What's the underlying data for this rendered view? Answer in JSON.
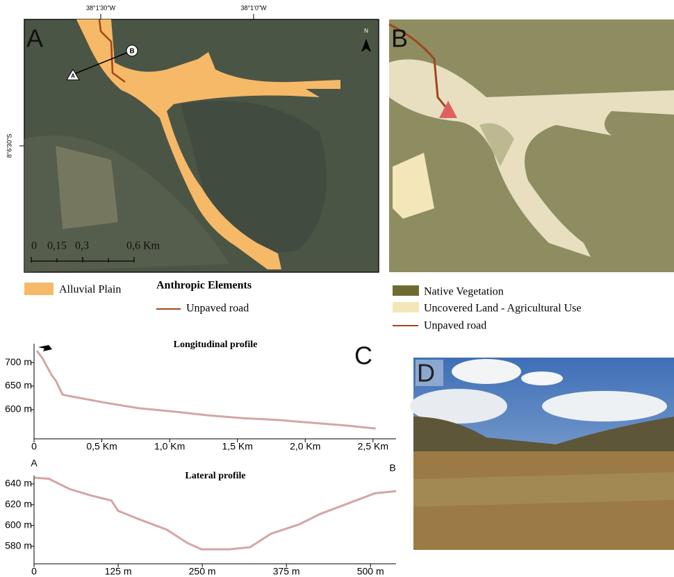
{
  "map_a": {
    "letter": "A",
    "lon_labels": [
      "38°1'30\"W",
      "38°1'0\"W"
    ],
    "lat_label": "8°6'30\"S",
    "markers": [
      "B",
      "A"
    ],
    "north": "N",
    "scale_labels": [
      "0",
      "0,15",
      "0,3",
      "0,6 Km"
    ]
  },
  "legend_a": {
    "items": [
      {
        "label": "Alluvial Plain",
        "color": "#f6b968"
      }
    ],
    "heading": "Anthropic Elements",
    "road": {
      "label": "Unpaved road",
      "color": "#a0461c"
    }
  },
  "map_b": {
    "letter": "B"
  },
  "legend_b": {
    "items": [
      {
        "label": "Native Vegetation",
        "color": "#6f6c33"
      },
      {
        "label": "Uncovered Land - Agricultural Use",
        "color": "#f3e6b8"
      }
    ],
    "road": {
      "label": "Unpaved road",
      "color": "#a0461c"
    }
  },
  "panel_c": {
    "letter": "C"
  },
  "photo_d": {
    "letter": "D"
  },
  "chart_data": [
    {
      "type": "line",
      "title": "Longitudinal profile",
      "color": "#d4a5a5",
      "x": [
        0.02,
        0.06,
        0.13,
        0.16,
        0.21,
        0.24,
        0.52,
        0.77,
        1.03,
        1.28,
        1.54,
        1.8,
        2.05,
        2.31,
        2.52
      ],
      "values": [
        725,
        710,
        673,
        662,
        632,
        630,
        615,
        603,
        596,
        588,
        582,
        578,
        572,
        566,
        560
      ],
      "xlim": [
        0,
        2.67
      ],
      "ylim": [
        538,
        740
      ],
      "xticks": [
        0,
        {
          "value": 0.5,
          "label": "0,5 Km"
        },
        {
          "value": 1.0,
          "label": "1,0 Km"
        },
        {
          "value": 1.5,
          "label": "1,5 Km"
        },
        {
          "value": 2.0,
          "label": "2,0 Km"
        },
        {
          "value": 2.5,
          "label": "2,5 Km"
        }
      ],
      "yticks": [
        {
          "value": 600,
          "label": "600 m"
        },
        {
          "value": 650,
          "label": "650 m"
        },
        {
          "value": 700,
          "label": "700 m"
        }
      ]
    },
    {
      "type": "line",
      "title": "Lateral profile",
      "color": "#d4a5a5",
      "annotations": [
        "A",
        "B"
      ],
      "x": [
        1,
        22,
        53,
        84,
        115,
        125,
        156,
        197,
        228,
        249,
        290,
        321,
        352,
        394,
        425,
        466,
        507,
        538
      ],
      "values": [
        646,
        645,
        635,
        629,
        624,
        614,
        606,
        596,
        583,
        577,
        577,
        579,
        592,
        601,
        611,
        621,
        631,
        633
      ],
      "xlim": [
        0,
        538
      ],
      "ylim": [
        563,
        648
      ],
      "xticks": [
        0,
        {
          "value": 125,
          "label": "125 m"
        },
        {
          "value": 250,
          "label": "250 m"
        },
        {
          "value": 375,
          "label": "375 m"
        },
        {
          "value": 500,
          "label": "500 m"
        }
      ],
      "yticks": [
        {
          "value": 580,
          "label": "580 m"
        },
        {
          "value": 600,
          "label": "600 m"
        },
        {
          "value": 620,
          "label": "620 m"
        },
        {
          "value": 640,
          "label": "640 m"
        }
      ]
    }
  ]
}
